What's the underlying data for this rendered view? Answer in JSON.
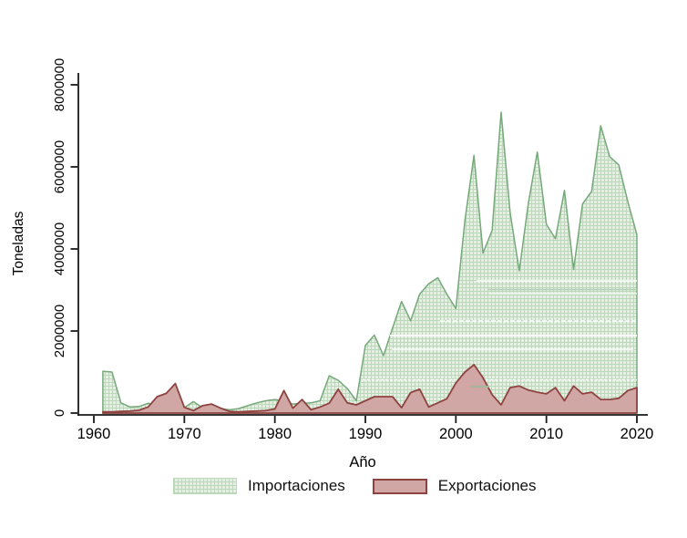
{
  "chart_data": {
    "type": "area",
    "title": "",
    "xlabel": "Año",
    "ylabel": "Toneladas",
    "legend_position": "bottom",
    "grid": false,
    "xlim": [
      1958,
      2021.2
    ],
    "ylim": [
      0,
      8200000
    ],
    "x_ticks": [
      1960,
      1970,
      1980,
      1990,
      2000,
      2010,
      2020
    ],
    "x_tick_labels": [
      "1960",
      "1970",
      "1980",
      "1990",
      "2000",
      "2010",
      "2020"
    ],
    "y_ticks": [
      0,
      2000000,
      4000000,
      6000000,
      8000000
    ],
    "y_tick_labels": [
      "0",
      "2000000",
      "4000000",
      "6000000",
      "8000000"
    ],
    "x": [
      1961,
      1962,
      1963,
      1964,
      1965,
      1966,
      1967,
      1968,
      1969,
      1970,
      1971,
      1972,
      1973,
      1974,
      1975,
      1976,
      1977,
      1978,
      1979,
      1980,
      1981,
      1982,
      1983,
      1984,
      1985,
      1986,
      1987,
      1988,
      1989,
      1990,
      1991,
      1992,
      1993,
      1994,
      1995,
      1996,
      1997,
      1998,
      1999,
      2000,
      2001,
      2002,
      2003,
      2004,
      2005,
      2006,
      2007,
      2008,
      2009,
      2010,
      2011,
      2012,
      2013,
      2014,
      2015,
      2016,
      2017,
      2018,
      2019,
      2020
    ],
    "series": [
      {
        "name": "Importaciones",
        "fill": "#e3f0e2",
        "pattern": "#b9d9b7",
        "edge": "#76a97a",
        "values": [
          1020000,
          1000000,
          250000,
          150000,
          160000,
          240000,
          180000,
          130000,
          130000,
          130000,
          280000,
          130000,
          110000,
          110000,
          80000,
          110000,
          180000,
          250000,
          300000,
          330000,
          280000,
          220000,
          240000,
          250000,
          300000,
          910000,
          800000,
          600000,
          300000,
          1650000,
          1900000,
          1400000,
          2070000,
          2720000,
          2250000,
          2900000,
          3150000,
          3300000,
          2900000,
          2550000,
          4700000,
          6280000,
          3900000,
          4450000,
          7330000,
          4880000,
          3470000,
          5100000,
          6360000,
          4600000,
          4250000,
          5430000,
          3500000,
          5100000,
          5400000,
          7000000,
          6250000,
          6050000,
          5150000,
          4350000
        ]
      },
      {
        "name": "Exportaciones",
        "fill": "#d0a7a5",
        "edge": "#8e4340",
        "values": [
          30000,
          30000,
          40000,
          50000,
          70000,
          150000,
          400000,
          480000,
          720000,
          140000,
          60000,
          180000,
          220000,
          120000,
          40000,
          30000,
          40000,
          50000,
          60000,
          100000,
          550000,
          120000,
          330000,
          80000,
          150000,
          240000,
          580000,
          250000,
          200000,
          300000,
          400000,
          400000,
          400000,
          130000,
          500000,
          580000,
          150000,
          250000,
          350000,
          730000,
          1000000,
          1180000,
          860000,
          450000,
          200000,
          620000,
          660000,
          560000,
          510000,
          470000,
          620000,
          300000,
          660000,
          470000,
          510000,
          330000,
          330000,
          360000,
          550000,
          620000
        ]
      }
    ],
    "axis_color": "#1a1a1a"
  },
  "legend": {
    "importaciones_label": "Importaciones",
    "exportaciones_label": "Exportaciones"
  }
}
